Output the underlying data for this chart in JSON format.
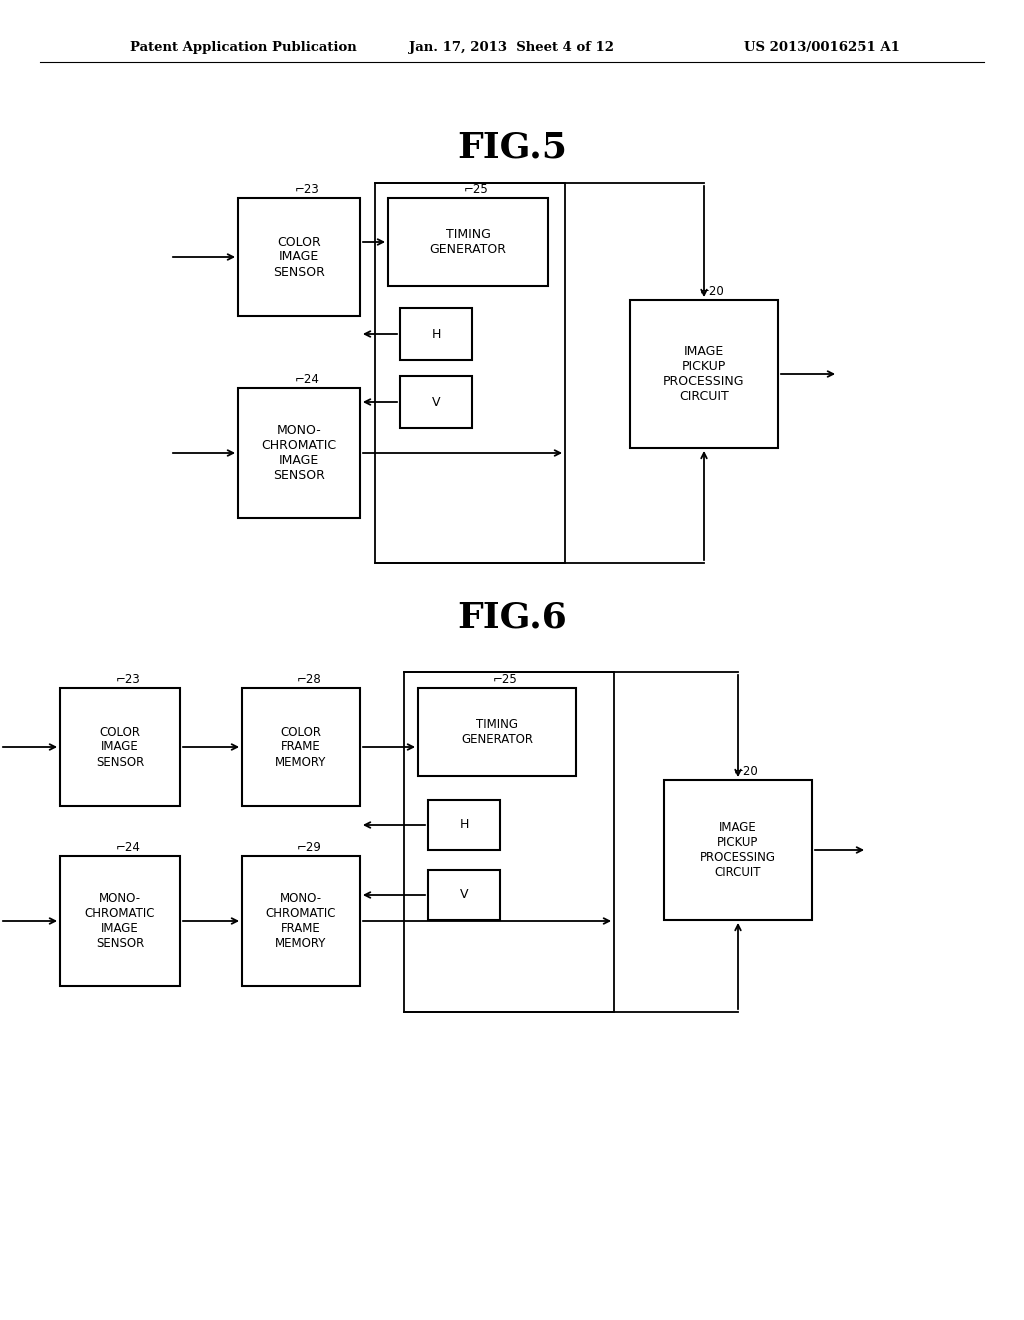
{
  "header_left": "Patent Application Publication",
  "header_mid": "Jan. 17, 2013  Sheet 4 of 12",
  "header_right": "US 2013/0016251 A1",
  "fig5_title": "FIG.5",
  "fig6_title": "FIG.6",
  "bg": "#ffffff"
}
